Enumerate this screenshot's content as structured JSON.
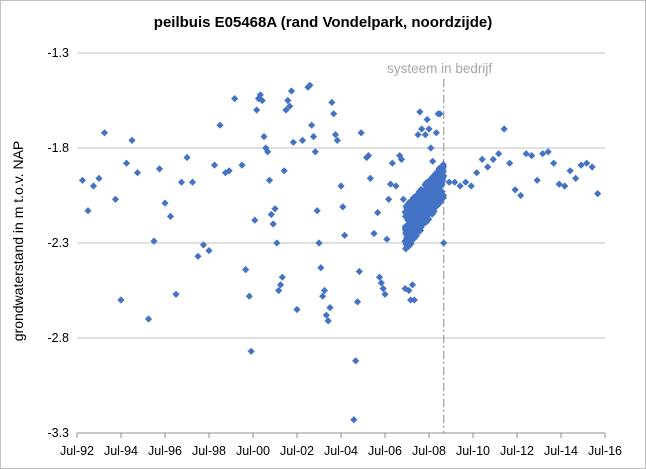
{
  "chart_data": {
    "type": "scatter",
    "title": "peilbuis E05468A (rand Vondelpark, noordzijde)",
    "ylabel": "grondwaterstand in m t.o.v. NAP",
    "xlabel": "",
    "x_axis_type": "date",
    "xlim": [
      "1992-07",
      "2016-07"
    ],
    "xticks": [
      {
        "date": "1992-07",
        "label": "Jul-92"
      },
      {
        "date": "1994-07",
        "label": "Jul-94"
      },
      {
        "date": "1996-07",
        "label": "Jul-96"
      },
      {
        "date": "1998-07",
        "label": "Jul-98"
      },
      {
        "date": "2000-07",
        "label": "Jul-00"
      },
      {
        "date": "2002-07",
        "label": "Jul-02"
      },
      {
        "date": "2004-07",
        "label": "Jul-04"
      },
      {
        "date": "2006-07",
        "label": "Jul-06"
      },
      {
        "date": "2008-07",
        "label": "Jul-08"
      },
      {
        "date": "2010-07",
        "label": "Jul-10"
      },
      {
        "date": "2012-07",
        "label": "Jul-12"
      },
      {
        "date": "2014-07",
        "label": "Jul-14"
      },
      {
        "date": "2016-07",
        "label": "Jul-16"
      }
    ],
    "ylim": [
      -3.3,
      -1.3
    ],
    "yticks": [
      {
        "value": -1.3,
        "label": "-1.3"
      },
      {
        "value": -1.8,
        "label": "-1.8"
      },
      {
        "value": -2.3,
        "label": "-2.3"
      },
      {
        "value": -2.8,
        "label": "-2.8"
      },
      {
        "value": -3.3,
        "label": "-3.3"
      }
    ],
    "grid": "horizontal",
    "legend": "none",
    "marker_color": "#4472c4",
    "annotation": {
      "text": "systeem in bedrijf",
      "x": "2009-03",
      "line_style": "dash-dot",
      "color": "#a6a6a6"
    },
    "series": [
      {
        "points": [
          [
            "1992-10",
            -1.97
          ],
          [
            "1993-01",
            -2.13
          ],
          [
            "1993-04",
            -2.0
          ],
          [
            "1993-07",
            -1.96
          ],
          [
            "1993-10",
            -1.72
          ],
          [
            "1994-04",
            -2.07
          ],
          [
            "1994-07",
            -2.6
          ],
          [
            "1994-10",
            -1.88
          ],
          [
            "1995-01",
            -1.76
          ],
          [
            "1995-04",
            -1.93
          ],
          [
            "1995-10",
            -2.7
          ],
          [
            "1996-01",
            -2.29
          ],
          [
            "1996-04",
            -1.91
          ],
          [
            "1996-07",
            -2.09
          ],
          [
            "1996-10",
            -2.16
          ],
          [
            "1997-01",
            -2.57
          ],
          [
            "1997-04",
            -1.98
          ],
          [
            "1997-07",
            -1.85
          ],
          [
            "1997-10",
            -1.98
          ],
          [
            "1998-01",
            -2.37
          ],
          [
            "1998-04",
            -2.31
          ],
          [
            "1998-07",
            -2.34
          ],
          [
            "1998-10",
            -1.89
          ],
          [
            "1999-01",
            -1.68
          ],
          [
            "1999-04",
            -1.93
          ],
          [
            "1999-06",
            -1.92
          ],
          [
            "1999-09",
            -1.54
          ],
          [
            "2000-01",
            -1.89
          ],
          [
            "2000-03",
            -2.44
          ],
          [
            "2000-05",
            -2.58
          ],
          [
            "2000-06",
            -2.87
          ],
          [
            "2000-08",
            -2.18
          ],
          [
            "2000-09",
            -1.6
          ],
          [
            "2000-10",
            -1.54
          ],
          [
            "2000-11",
            -1.52
          ],
          [
            "2000-12",
            -1.55
          ],
          [
            "2001-01",
            -1.74
          ],
          [
            "2001-02",
            -1.8
          ],
          [
            "2001-03",
            -1.82
          ],
          [
            "2001-04",
            -1.97
          ],
          [
            "2001-05",
            -2.15
          ],
          [
            "2001-06",
            -2.2
          ],
          [
            "2001-07",
            -2.12
          ],
          [
            "2001-08",
            -2.3
          ],
          [
            "2001-09",
            -2.55
          ],
          [
            "2001-10",
            -2.52
          ],
          [
            "2001-11",
            -2.48
          ],
          [
            "2001-12",
            -1.92
          ],
          [
            "2002-01",
            -1.6
          ],
          [
            "2002-02",
            -1.55
          ],
          [
            "2002-03",
            -1.58
          ],
          [
            "2002-04",
            -1.5
          ],
          [
            "2002-05",
            -1.77
          ],
          [
            "2002-07",
            -2.65
          ],
          [
            "2002-10",
            -1.76
          ],
          [
            "2003-01",
            -1.48
          ],
          [
            "2003-02",
            -1.47
          ],
          [
            "2003-03",
            -1.68
          ],
          [
            "2003-04",
            -1.74
          ],
          [
            "2003-05",
            -1.82
          ],
          [
            "2003-06",
            -2.13
          ],
          [
            "2003-07",
            -2.3
          ],
          [
            "2003-08",
            -2.43
          ],
          [
            "2003-09",
            -2.58
          ],
          [
            "2003-10",
            -2.55
          ],
          [
            "2003-11",
            -2.68
          ],
          [
            "2003-12",
            -2.71
          ],
          [
            "2004-01",
            -2.64
          ],
          [
            "2004-02",
            -1.56
          ],
          [
            "2004-03",
            -1.62
          ],
          [
            "2004-04",
            -1.73
          ],
          [
            "2004-05",
            -1.76
          ],
          [
            "2004-07",
            -2.0
          ],
          [
            "2004-08",
            -2.11
          ],
          [
            "2004-09",
            -2.26
          ],
          [
            "2005-02",
            -3.23
          ],
          [
            "2005-03",
            -2.92
          ],
          [
            "2005-04",
            -2.61
          ],
          [
            "2005-05",
            -2.45
          ],
          [
            "2005-06",
            -1.72
          ],
          [
            "2005-09",
            -1.85
          ],
          [
            "2005-10",
            -1.84
          ],
          [
            "2005-11",
            -1.96
          ],
          [
            "2006-01",
            -2.25
          ],
          [
            "2006-03",
            -2.14
          ],
          [
            "2006-04",
            -2.48
          ],
          [
            "2006-05",
            -2.51
          ],
          [
            "2006-06",
            -2.54
          ],
          [
            "2006-07",
            -2.57
          ],
          [
            "2006-08",
            -2.28
          ],
          [
            "2006-09",
            -2.07
          ],
          [
            "2006-10",
            -1.99
          ],
          [
            "2006-11",
            -1.88
          ],
          [
            "2007-01",
            -2.0
          ],
          [
            "2007-03",
            -1.84
          ],
          [
            "2007-04",
            -1.86
          ],
          [
            "2007-05",
            -2.07
          ],
          [
            "2007-06",
            -2.54
          ],
          [
            "2007-08",
            -2.55
          ],
          [
            "2007-09",
            -2.6
          ],
          [
            "2007-10",
            -2.52
          ],
          [
            "2007-11",
            -2.6
          ],
          [
            "2008-01",
            -1.73
          ],
          [
            "2008-02",
            -1.61
          ],
          [
            "2008-03",
            -1.7
          ],
          [
            "2008-05",
            -1.73
          ],
          [
            "2008-06",
            -1.65
          ],
          [
            "2008-07",
            -1.7
          ],
          [
            "2008-08",
            -1.8
          ],
          [
            "2008-09",
            -1.87
          ],
          [
            "2008-10",
            -1.95
          ],
          [
            "2008-11",
            -1.72
          ],
          [
            "2008-12",
            -1.62
          ],
          [
            "2009-01",
            -1.62
          ],
          [
            "2009-03",
            -2.3
          ],
          [
            "2009-06",
            -1.98
          ],
          [
            "2009-09",
            -1.98
          ],
          [
            "2009-12",
            -2.0
          ],
          [
            "2010-03",
            -1.98
          ],
          [
            "2010-06",
            -2.0
          ],
          [
            "2010-09",
            -1.93
          ],
          [
            "2010-12",
            -1.86
          ],
          [
            "2011-03",
            -1.9
          ],
          [
            "2011-06",
            -1.86
          ],
          [
            "2011-09",
            -1.83
          ],
          [
            "2011-12",
            -1.7
          ],
          [
            "2012-03",
            -1.88
          ],
          [
            "2012-06",
            -2.02
          ],
          [
            "2012-09",
            -2.05
          ],
          [
            "2012-12",
            -1.83
          ],
          [
            "2013-03",
            -1.84
          ],
          [
            "2013-06",
            -1.97
          ],
          [
            "2013-09",
            -1.83
          ],
          [
            "2013-12",
            -1.82
          ],
          [
            "2014-03",
            -1.88
          ],
          [
            "2014-06",
            -1.99
          ],
          [
            "2014-09",
            -2.0
          ],
          [
            "2014-12",
            -1.92
          ],
          [
            "2015-03",
            -1.96
          ],
          [
            "2015-06",
            -1.89
          ],
          [
            "2015-09",
            -1.88
          ],
          [
            "2015-12",
            -1.9
          ],
          [
            "2016-03",
            -2.04
          ]
        ],
        "dense_band": {
          "x_start": "2007-06",
          "x_end": "2009-03",
          "y_center_start": -2.23,
          "y_center_end": -1.97,
          "y_spread_start": 0.12,
          "y_spread_end": 0.09,
          "y_min": -2.38,
          "y_max": -1.84
        }
      }
    ]
  }
}
